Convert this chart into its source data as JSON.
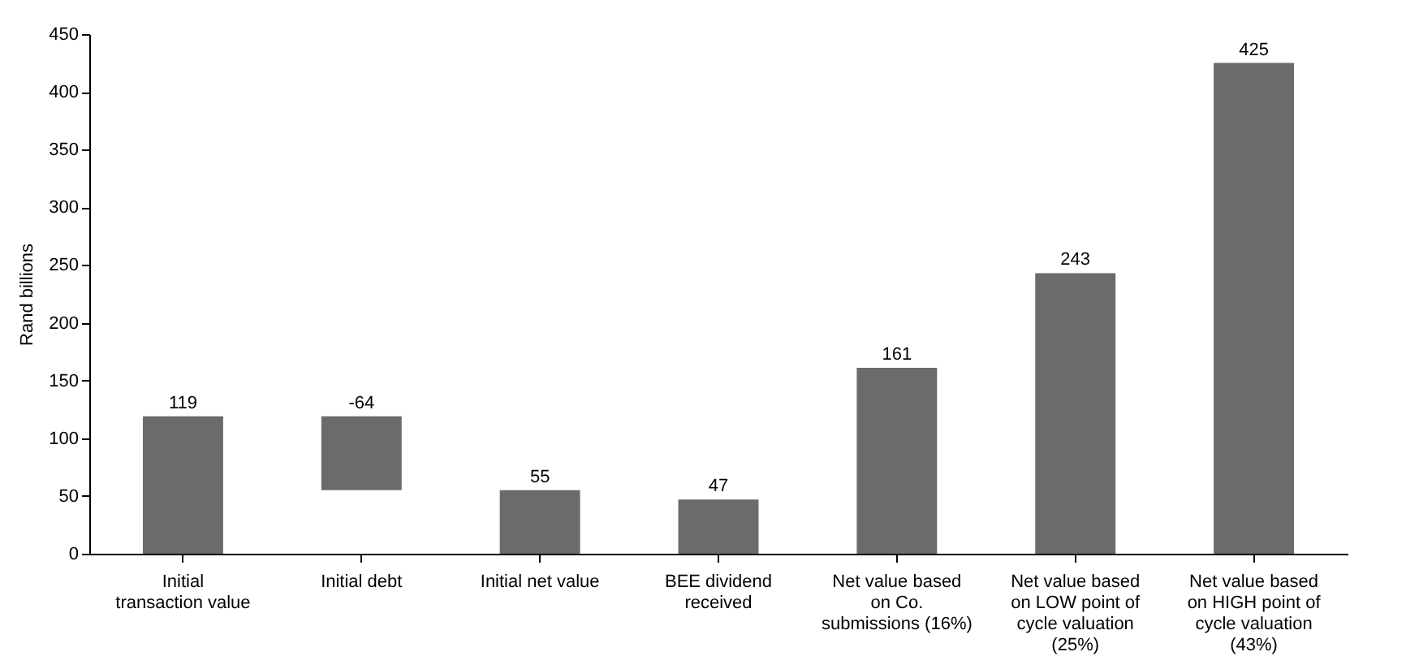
{
  "chart_data": {
    "type": "bar",
    "ylabel": "Rand billions",
    "categories": [
      "Initial transaction value",
      "Initial debt",
      "Initial net value",
      "BEE dividend received",
      "Net value based on Co. submissions (16%)",
      "Net value based on LOW point of cycle valuation (25%)",
      "Net value based on HIGH point of cycle valuation (43%)"
    ],
    "values": [
      119,
      -64,
      55,
      47,
      161,
      243,
      425
    ],
    "base": [
      0,
      119,
      0,
      0,
      0,
      0,
      0
    ],
    "value_labels": [
      "119",
      "-64",
      "55",
      "47",
      "161",
      "243",
      "425"
    ],
    "color": "#6b6b6b",
    "ylim": [
      0,
      450
    ],
    "yticks": [
      0,
      50,
      100,
      150,
      200,
      250,
      300,
      350,
      400,
      450
    ],
    "grid": false
  }
}
